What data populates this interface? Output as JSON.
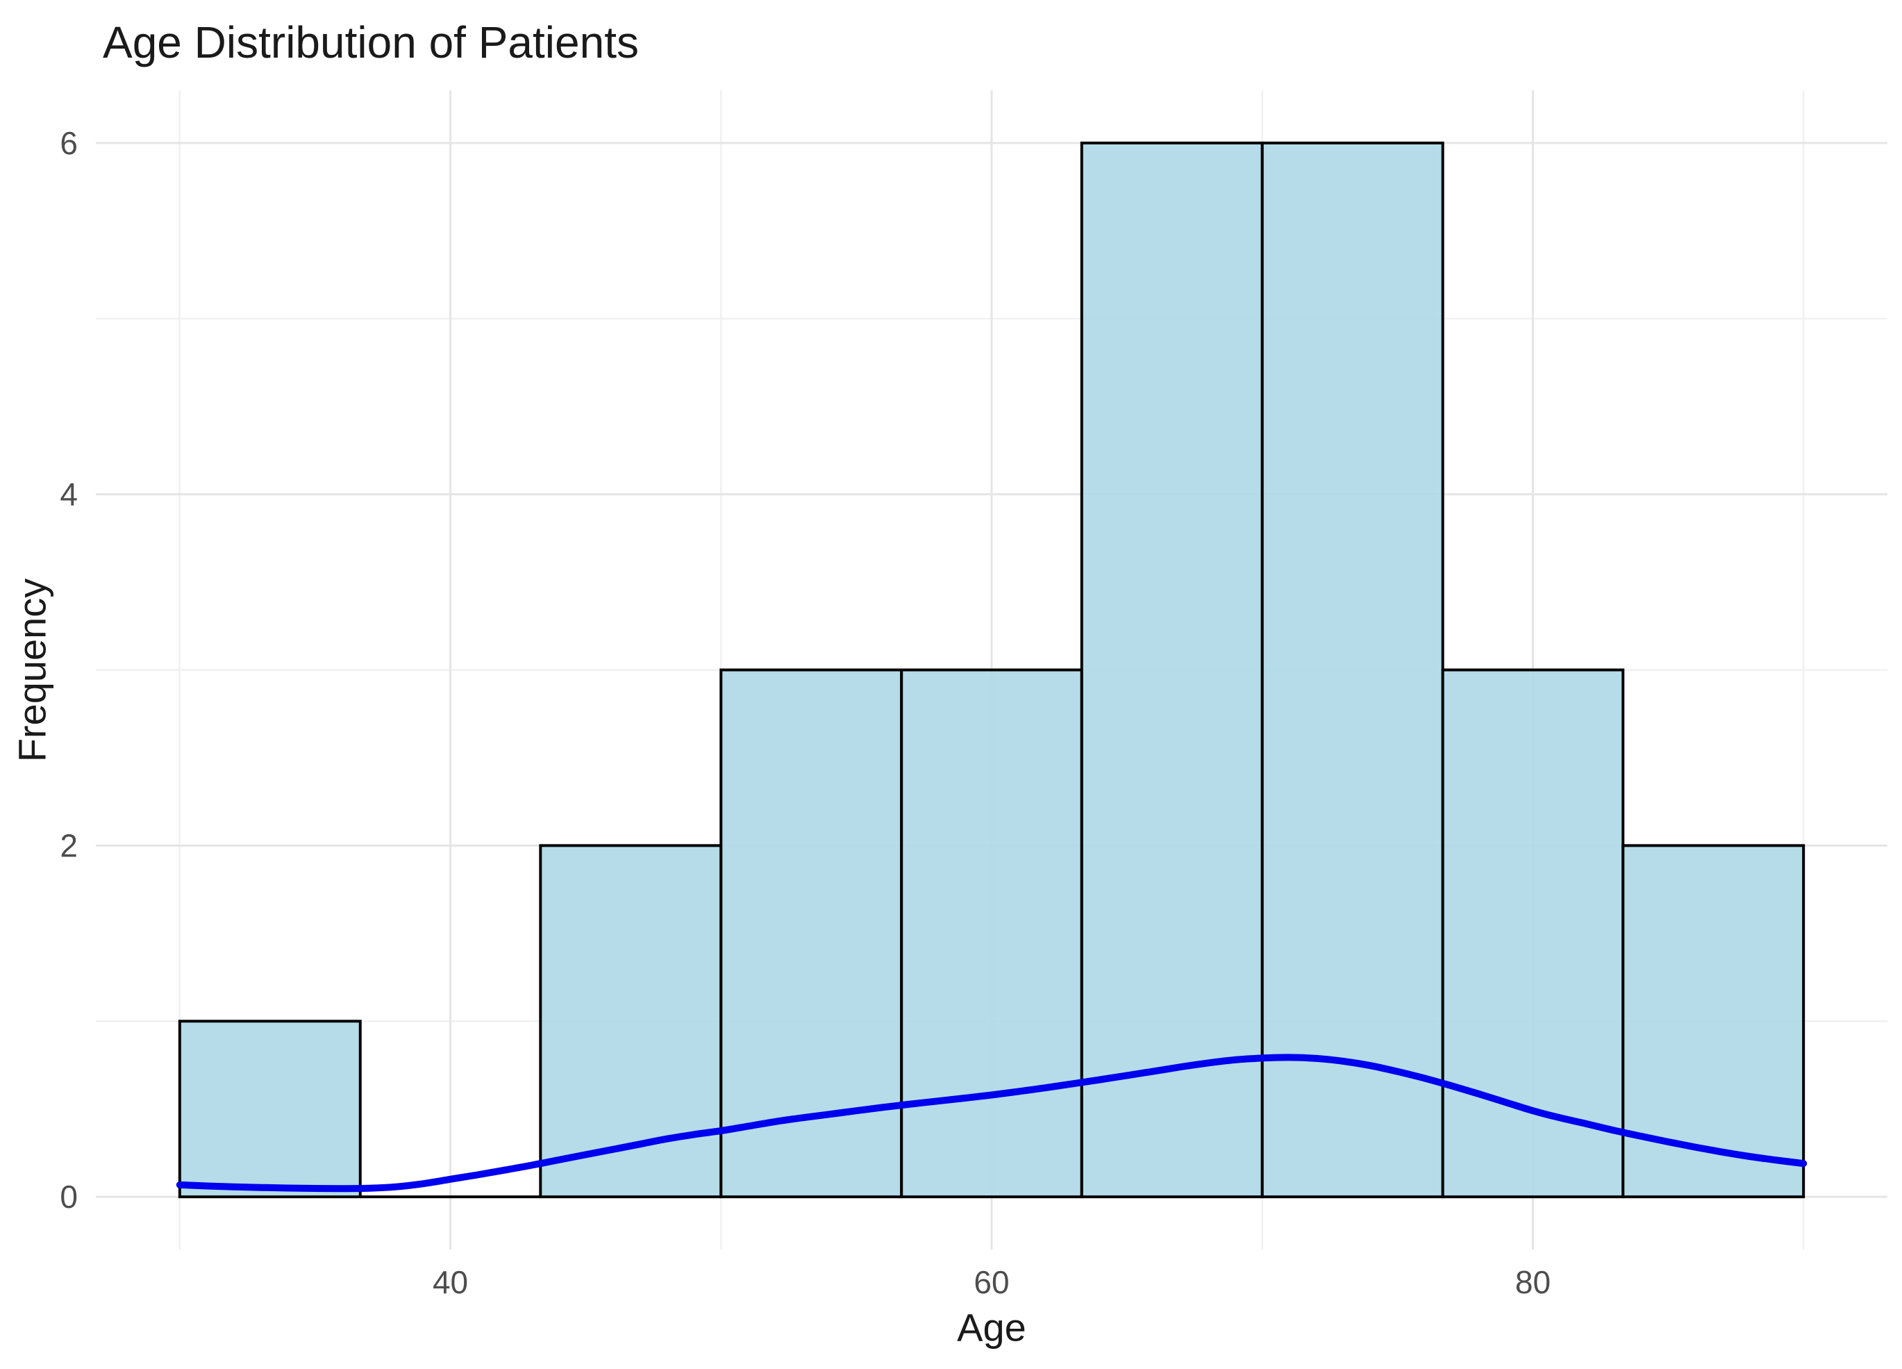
{
  "page": {
    "background": "#ffffff"
  },
  "chart_data": {
    "type": "histogram",
    "title": "Age Distribution of Patients",
    "xlabel": "Age",
    "ylabel": "Frequency",
    "legend": "none",
    "grid": "major+minor",
    "x_ticks": [
      40,
      60,
      80
    ],
    "x_minor_ticks": [
      30,
      50,
      70,
      90
    ],
    "y_ticks": [
      0,
      2,
      4,
      6
    ],
    "y_minor_ticks": [
      1,
      3,
      5
    ],
    "xlim": [
      26.9,
      93.1
    ],
    "ylim": [
      -0.3,
      6.3
    ],
    "bins": {
      "edges": [
        30,
        36.67,
        43.33,
        50,
        56.67,
        63.33,
        70,
        76.67,
        83.33,
        90
      ],
      "counts": [
        1,
        0,
        2,
        3,
        3,
        6,
        6,
        3,
        2
      ]
    },
    "density_curve": {
      "x": [
        30,
        31,
        32,
        33,
        34,
        35,
        36,
        37,
        38,
        39,
        40,
        41,
        42,
        43,
        44,
        45,
        46,
        47,
        48,
        49,
        50,
        51,
        52,
        53,
        54,
        55,
        56,
        57,
        58,
        59,
        60,
        61,
        62,
        63,
        64,
        65,
        66,
        67,
        68,
        69,
        70,
        71,
        72,
        73,
        74,
        75,
        76,
        77,
        78,
        79,
        80,
        81,
        82,
        83,
        84,
        85,
        86,
        87,
        88,
        89,
        90
      ],
      "frequency": [
        0.068,
        0.062,
        0.057,
        0.053,
        0.05,
        0.048,
        0.047,
        0.049,
        0.057,
        0.075,
        0.1,
        0.125,
        0.152,
        0.18,
        0.21,
        0.24,
        0.27,
        0.3,
        0.33,
        0.355,
        0.376,
        0.402,
        0.428,
        0.45,
        0.47,
        0.49,
        0.51,
        0.528,
        0.545,
        0.562,
        0.58,
        0.6,
        0.621,
        0.644,
        0.667,
        0.691,
        0.715,
        0.74,
        0.762,
        0.78,
        0.79,
        0.794,
        0.788,
        0.772,
        0.747,
        0.713,
        0.675,
        0.632,
        0.586,
        0.538,
        0.49,
        0.45,
        0.415,
        0.378,
        0.345,
        0.313,
        0.283,
        0.255,
        0.23,
        0.209,
        0.19
      ]
    },
    "colors": {
      "bar_fill": "#ADD8E6",
      "bar_stroke": "#000000",
      "curve": "#0000EE",
      "grid_major": "#E5E5E5",
      "grid_minor": "#F1F1F1",
      "tick_label": "#4D4D4D",
      "text": "#1A1A1A"
    }
  }
}
